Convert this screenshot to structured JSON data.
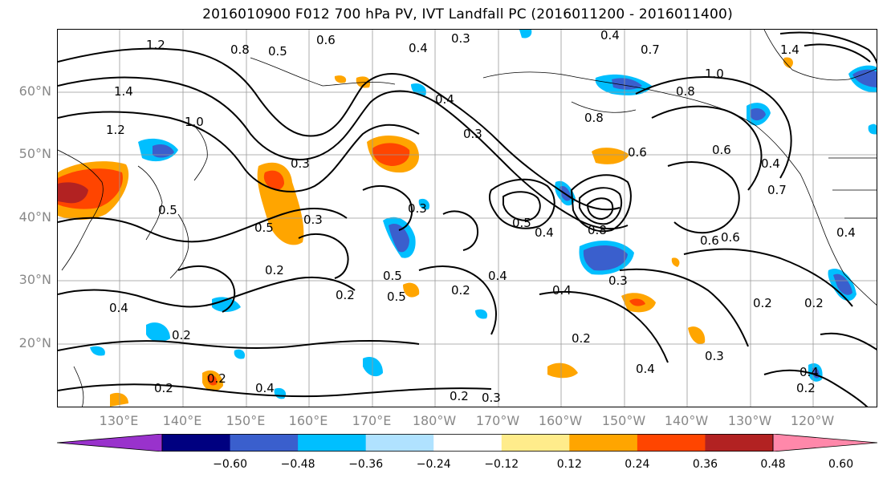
{
  "title": "2016010900 F012 700 hPa PV, IVT Landfall PC (2016011200 - 2016011400)",
  "lat_labels": [
    "60°N",
    "50°N",
    "40°N",
    "30°N",
    "20°N"
  ],
  "lon_labels": [
    "130°E",
    "140°E",
    "150°E",
    "160°E",
    "170°E",
    "180°W",
    "170°W",
    "160°W",
    "150°W",
    "140°W",
    "130°W",
    "120°W"
  ],
  "colorbar": {
    "ticks": [
      "−0.60",
      "−0.48",
      "−0.36",
      "−0.24",
      "−0.12",
      "0.12",
      "0.24",
      "0.36",
      "0.48",
      "0.60"
    ],
    "colors": [
      "#9932cc",
      "#000080",
      "#3a5fcd",
      "#00bfff",
      "#b0e2ff",
      "#ffffff",
      "#ffec8b",
      "#ffa500",
      "#ff4500",
      "#b22222",
      "#ff88aa"
    ]
  },
  "contour_labels": [
    "1.2",
    "0.8",
    "0.6",
    "0.5",
    "0.3",
    "0.4",
    "0.4",
    "1.4",
    "1.0",
    "0.8",
    "1.0",
    "0.7",
    "1.4",
    "1.2",
    "0.4",
    "0.3",
    "0.8",
    "0.6",
    "0.6",
    "0.4",
    "0.7",
    "0.5",
    "0.5",
    "0.3",
    "0.3",
    "0.5",
    "0.4",
    "0.3",
    "0.8",
    "0.6",
    "0.6",
    "0.5",
    "0.4",
    "0.2",
    "0.5",
    "0.2",
    "0.4",
    "0.2",
    "0.4",
    "0.3",
    "0.2",
    "0.2",
    "0.4",
    "0.2",
    "0.2",
    "0.4",
    "0.3",
    "0.2",
    "0.2",
    "0.4",
    "0.4",
    "0.2",
    "0.3",
    "0.2"
  ]
}
